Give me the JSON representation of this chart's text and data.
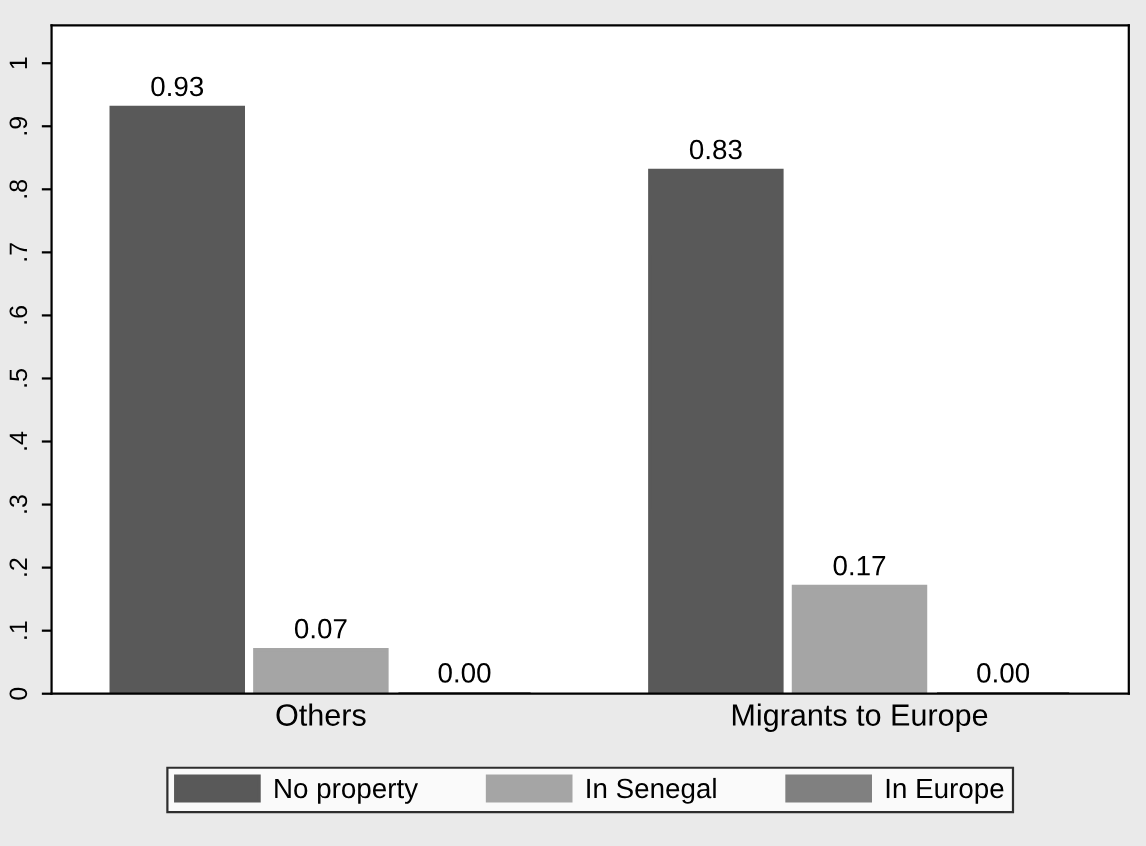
{
  "chart_data": {
    "type": "bar",
    "categories": [
      "Others",
      "Migrants to Europe"
    ],
    "series": [
      {
        "name": "No property",
        "color": "#595959",
        "values": [
          0.93,
          0.83
        ],
        "value_labels": [
          "0.93",
          "0.83"
        ]
      },
      {
        "name": "In Senegal",
        "color": "#a5a5a5",
        "values": [
          0.07,
          0.17
        ],
        "value_labels": [
          "0.07",
          "0.17"
        ]
      },
      {
        "name": "In Europe",
        "color": "#808080",
        "values": [
          0.0,
          0.0
        ],
        "value_labels": [
          "0.00",
          "0.00"
        ]
      }
    ],
    "ylim": [
      0,
      1.06
    ],
    "yticks": [
      0,
      {
        "value": 0.1,
        "label": ".1"
      },
      {
        "value": 0.2,
        "label": ".2"
      },
      {
        "value": 0.3,
        "label": ".3"
      },
      {
        "value": 0.4,
        "label": ".4"
      },
      {
        "value": 0.5,
        "label": ".5"
      },
      {
        "value": 0.6,
        "label": ".6"
      },
      {
        "value": 0.7,
        "label": ".7"
      },
      {
        "value": 0.8,
        "label": ".8"
      },
      {
        "value": 0.9,
        "label": ".9"
      },
      1
    ],
    "grid": false,
    "legend": "bottom"
  }
}
